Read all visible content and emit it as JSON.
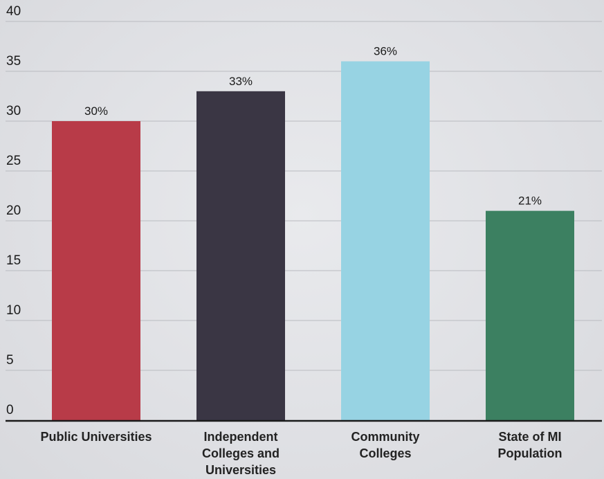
{
  "chart_data": {
    "type": "bar",
    "categories": [
      "Public Universities",
      "Independent Colleges and Universities",
      "Community Colleges",
      "State of MI Population"
    ],
    "category_lines": [
      [
        "Public Universities"
      ],
      [
        "Independent",
        "Colleges and",
        "Universities"
      ],
      [
        "Community",
        "Colleges"
      ],
      [
        "State of MI",
        "Population"
      ]
    ],
    "values": [
      30,
      33,
      36,
      21
    ],
    "data_labels": [
      "30%",
      "33%",
      "36%",
      "21%"
    ],
    "colors": [
      "#b83b48",
      "#3a3644",
      "#97d3e3",
      "#3c8061"
    ],
    "ylim": [
      0,
      40
    ],
    "y_ticks": [
      0,
      5,
      10,
      15,
      20,
      25,
      30,
      35,
      40
    ],
    "grid": true,
    "gridline_color": "#b9bbc0",
    "axis_color": "#1a1a1a",
    "legend": "none"
  }
}
